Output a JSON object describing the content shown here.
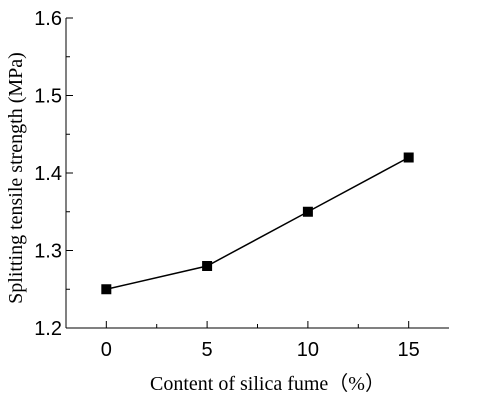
{
  "chart_data": {
    "type": "line",
    "title": "",
    "xlabel": "Content of silica fume（%）",
    "ylabel": "Splitting tensile strength (MPa)",
    "x": [
      0,
      5,
      10,
      15
    ],
    "series": [
      {
        "values": [
          1.25,
          1.28,
          1.35,
          1.42
        ]
      }
    ],
    "xlim": [
      -2,
      17
    ],
    "ylim": [
      1.2,
      1.6
    ],
    "xticks": [
      0,
      5,
      10,
      15
    ],
    "xtick_labels": [
      "0",
      "5",
      "10",
      "15"
    ],
    "yticks": [
      1.2,
      1.3,
      1.4,
      1.5,
      1.6
    ],
    "ytick_labels": [
      "1.2",
      "1.3",
      "1.4",
      "1.5",
      "1.6"
    ],
    "grid": false,
    "legend": "none",
    "marker": "square",
    "line_color": "#000000"
  }
}
